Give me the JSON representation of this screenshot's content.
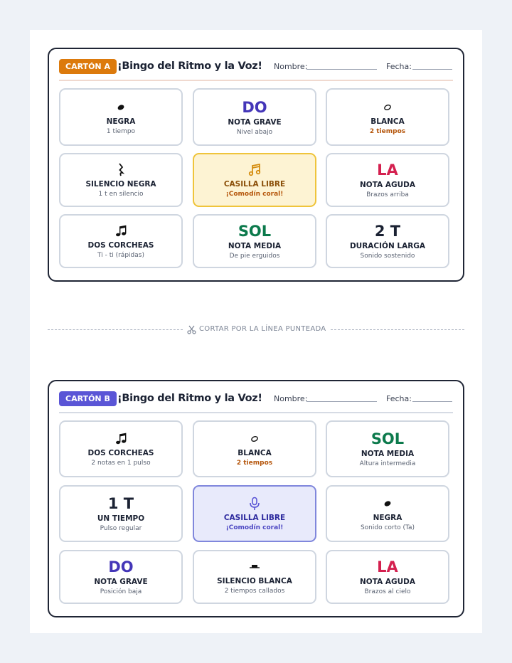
{
  "cards": [
    {
      "badge": "CARTÓN A",
      "title": "¡Bingo del Ritmo y la Voz!",
      "name_label": "Nombre:",
      "date_label": "Fecha:",
      "cells": [
        {
          "label": "NEGRA",
          "sub": "1 tiempo"
        },
        {
          "big": "DO",
          "label": "NOTA GRAVE",
          "sub": "Nivel abajo"
        },
        {
          "label": "BLANCA",
          "sub": "2 tiempos"
        },
        {
          "label": "SILENCIO NEGRA",
          "sub": "1 t en silencio"
        },
        {
          "label": "CASILLA LIBRE",
          "sub": "¡Comodín coral!"
        },
        {
          "big": "LA",
          "label": "NOTA AGUDA",
          "sub": "Brazos arriba"
        },
        {
          "label": "DOS CORCHEAS",
          "sub": "Ti - ti (rápidas)"
        },
        {
          "big": "SOL",
          "label": "NOTA MEDIA",
          "sub": "De pie erguidos"
        },
        {
          "big": "2 T",
          "label": "DURACIÓN LARGA",
          "sub": "Sonido sostenido"
        }
      ]
    },
    {
      "badge": "CARTÓN B",
      "title": "¡Bingo del Ritmo y la Voz!",
      "name_label": "Nombre:",
      "date_label": "Fecha:",
      "cells": [
        {
          "label": "DOS CORCHEAS",
          "sub": "2 notas en 1 pulso"
        },
        {
          "label": "BLANCA",
          "sub": "2 tiempos"
        },
        {
          "big": "SOL",
          "label": "NOTA MEDIA",
          "sub": "Altura intermedia"
        },
        {
          "big": "1 T",
          "label": "UN TIEMPO",
          "sub": "Pulso regular"
        },
        {
          "label": "CASILLA LIBRE",
          "sub": "¡Comodín coral!"
        },
        {
          "label": "NEGRA",
          "sub": "Sonido corto (Ta)"
        },
        {
          "big": "DO",
          "label": "NOTA GRAVE",
          "sub": "Posición baja"
        },
        {
          "label": "SILENCIO BLANCA",
          "sub": "2 tiempos callados"
        },
        {
          "big": "LA",
          "label": "NOTA AGUDA",
          "sub": "Brazos al cielo"
        }
      ]
    }
  ],
  "cut_line": "CORTAR POR LA LÍNEA PUNTEADA"
}
